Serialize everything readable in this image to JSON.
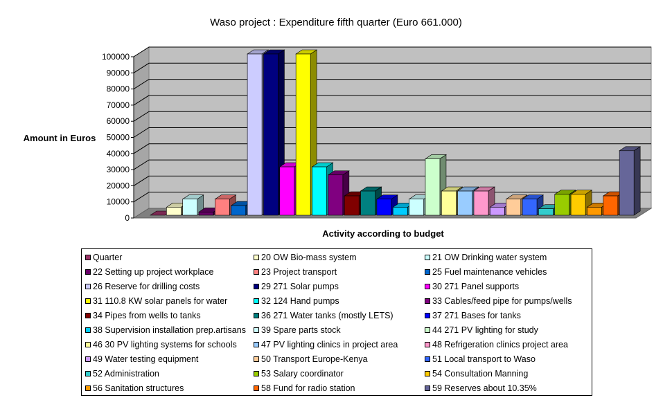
{
  "chart_data": {
    "type": "bar",
    "title": "Waso project : Expenditure fifth quarter (Euro 661.000)",
    "ylabel": "Amount in Euros",
    "xlabel": "Activity according to budget",
    "ylim": [
      0,
      100000
    ],
    "yticks": [
      0,
      10000,
      20000,
      30000,
      40000,
      50000,
      60000,
      70000,
      80000,
      90000,
      100000
    ],
    "grid": true,
    "legend_position": "bottom",
    "series": [
      {
        "name": "Quarter",
        "value": 0,
        "color": "#993366"
      },
      {
        "name": "20 OW Bio-mass system",
        "value": 5000,
        "color": "#FFFFCC"
      },
      {
        "name": "21 OW Drinking water system",
        "value": 10000,
        "color": "#CCFFFF"
      },
      {
        "name": "22 Setting up project workplace",
        "value": 2000,
        "color": "#660066"
      },
      {
        "name": "23 Project transport",
        "value": 10000,
        "color": "#FF8080"
      },
      {
        "name": "25 Fuel maintenance vehicles",
        "value": 6000,
        "color": "#0066CC"
      },
      {
        "name": "26 Reserve for drilling costs",
        "value": 100000,
        "color": "#CCCCFF"
      },
      {
        "name": "29 271 Solar pumps",
        "value": 100000,
        "color": "#000080"
      },
      {
        "name": "30 271 Panel supports",
        "value": 30000,
        "color": "#FF00FF"
      },
      {
        "name": "31 110.8 KW solar panels for water",
        "value": 100000,
        "color": "#FFFF00"
      },
      {
        "name": "32 124 Hand pumps",
        "value": 30000,
        "color": "#00FFFF"
      },
      {
        "name": "33 Cables/feed pipe for pumps/wells",
        "value": 25000,
        "color": "#800080"
      },
      {
        "name": "34 Pipes from wells to tanks",
        "value": 12000,
        "color": "#800000"
      },
      {
        "name": "36 271 Water tanks (mostly LETS)",
        "value": 15000,
        "color": "#008080"
      },
      {
        "name": "37 271 Bases for tanks",
        "value": 10000,
        "color": "#0000FF"
      },
      {
        "name": "38 Supervision installation prep.artisans",
        "value": 5000,
        "color": "#00CCFF"
      },
      {
        "name": "39 Spare parts stock",
        "value": 10000,
        "color": "#CCFFFF"
      },
      {
        "name": "44 271 PV lighting for study",
        "value": 35000,
        "color": "#CCFFCC"
      },
      {
        "name": "46 30 PV lighting systems for schools",
        "value": 15000,
        "color": "#FFFF99"
      },
      {
        "name": "47 PV lighting clinics in project area",
        "value": 15000,
        "color": "#99CCFF"
      },
      {
        "name": "48 Refrigeration clinics project area",
        "value": 15000,
        "color": "#FF99CC"
      },
      {
        "name": "49 Water testing equipment",
        "value": 5000,
        "color": "#CC99FF"
      },
      {
        "name": "50 Transport Europe-Kenya",
        "value": 10000,
        "color": "#FFCC99"
      },
      {
        "name": "51 Local transport to Waso",
        "value": 10000,
        "color": "#3366FF"
      },
      {
        "name": "52 Administration",
        "value": 4000,
        "color": "#33CCCC"
      },
      {
        "name": "53 Salary coordinator",
        "value": 13000,
        "color": "#99CC00"
      },
      {
        "name": "54 Consultation Manning",
        "value": 13000,
        "color": "#FFCC00"
      },
      {
        "name": "56 Sanitation structures",
        "value": 5000,
        "color": "#FF9900"
      },
      {
        "name": "58 Fund for radio station",
        "value": 12000,
        "color": "#FF6600"
      },
      {
        "name": "59 Reserves about 10.35%",
        "value": 40000,
        "color": "#666699"
      }
    ]
  }
}
